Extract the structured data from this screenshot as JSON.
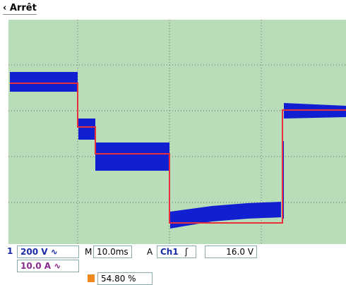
{
  "header": {
    "title": "Arrêt"
  },
  "status": {
    "ch1_marker": "1",
    "ch1_scale": "200 V ∿",
    "timebase_label": "M",
    "timebase": "10.0ms",
    "trigger_mode": "A",
    "trigger_source": "Ch1",
    "trigger_slope": "ʃ",
    "trigger_level": "16.0 V",
    "ch3_scale": "10.0 A ∿",
    "measurement": "54.80 %"
  }
}
